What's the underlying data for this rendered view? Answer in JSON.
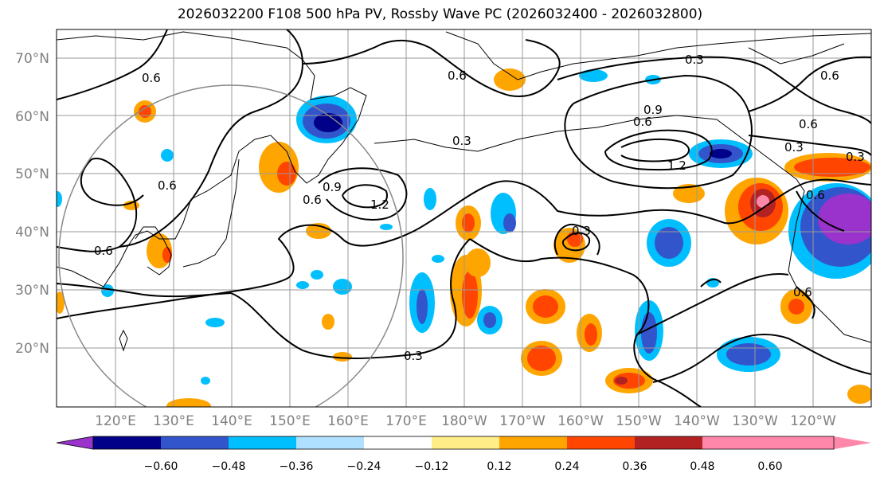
{
  "title": "2026032200 F108 500 hPa PV, Rossby Wave PC (2026032400 - 2026032800)",
  "lat_ticks": [
    "70°N",
    "60°N",
    "50°N",
    "40°N",
    "30°N",
    "20°N"
  ],
  "lon_ticks": [
    "120°E",
    "130°E",
    "140°E",
    "150°E",
    "160°E",
    "170°E",
    "180°W",
    "170°W",
    "160°W",
    "150°W",
    "140°W",
    "130°W",
    "120°W"
  ],
  "colorbar": {
    "ticks": [
      "−0.60",
      "−0.48",
      "−0.36",
      "−0.24",
      "−0.12",
      "0.12",
      "0.24",
      "0.36",
      "0.48",
      "0.60"
    ],
    "colors": [
      "#9933cc",
      "#000088",
      "#3355cc",
      "#00bfff",
      "#b0e0ff",
      "#ffffff",
      "#ffee88",
      "#ffa500",
      "#ff4500",
      "#b22222",
      "#ff88aa"
    ]
  },
  "contour_labels": [
    "0.6",
    "0.6",
    "0.6",
    "0.9",
    "1.2",
    "0.6",
    "0.3",
    "0.3",
    "0.6",
    "0.3",
    "0.6",
    "0.9",
    "1.2",
    "0.3",
    "0.6",
    "0.3",
    "0.6",
    "0.6",
    "0.3",
    "0.6"
  ]
}
